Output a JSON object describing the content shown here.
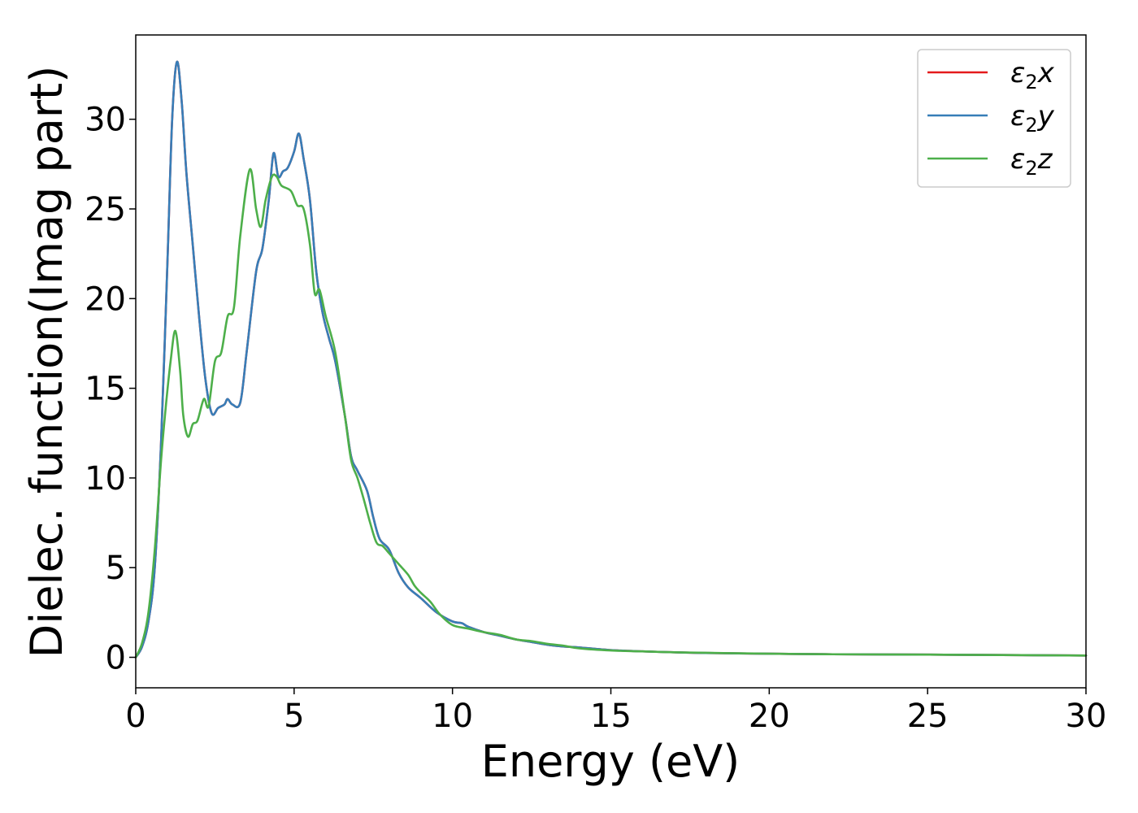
{
  "chart_data": {
    "type": "line",
    "title": "",
    "xlabel": "Energy (eV)",
    "ylabel": "Dielec. function(Imag part)",
    "xlim": [
      0,
      30
    ],
    "ylim": [
      -1.7,
      34.7
    ],
    "xticks": [
      0,
      5,
      10,
      15,
      20,
      25,
      30
    ],
    "yticks": [
      0,
      5,
      10,
      15,
      20,
      25,
      30
    ],
    "grid": false,
    "legend_position": "top-right",
    "series": [
      {
        "name": "ε₂x",
        "legend_base": "ε",
        "legend_sub": "2",
        "legend_suffix": "x",
        "color": "#e41a1c",
        "points": [
          [
            0,
            0
          ],
          [
            0.2,
            0.6
          ],
          [
            0.4,
            2
          ],
          [
            0.6,
            5
          ],
          [
            0.8,
            12
          ],
          [
            1,
            22
          ],
          [
            1.15,
            30
          ],
          [
            1.3,
            33.2
          ],
          [
            1.45,
            31
          ],
          [
            1.6,
            27
          ],
          [
            1.8,
            23
          ],
          [
            2,
            19
          ],
          [
            2.2,
            15.5
          ],
          [
            2.4,
            13.6
          ],
          [
            2.6,
            13.9
          ],
          [
            2.8,
            14.1
          ],
          [
            2.9,
            14.4
          ],
          [
            3.05,
            14.1
          ],
          [
            3.3,
            14.2
          ],
          [
            3.5,
            17
          ],
          [
            3.8,
            21.5
          ],
          [
            4,
            22.8
          ],
          [
            4.2,
            25.5
          ],
          [
            4.35,
            28.1
          ],
          [
            4.5,
            26.8
          ],
          [
            4.65,
            27.1
          ],
          [
            4.8,
            27.3
          ],
          [
            5,
            28.2
          ],
          [
            5.15,
            29.2
          ],
          [
            5.3,
            27.8
          ],
          [
            5.5,
            25.5
          ],
          [
            5.7,
            21.5
          ],
          [
            5.9,
            19.2
          ],
          [
            6.1,
            17.8
          ],
          [
            6.3,
            16.5
          ],
          [
            6.6,
            13.5
          ],
          [
            6.8,
            11.2
          ],
          [
            7,
            10.4
          ],
          [
            7.3,
            9.3
          ],
          [
            7.5,
            7.8
          ],
          [
            7.7,
            6.6
          ],
          [
            8,
            6
          ],
          [
            8.3,
            4.7
          ],
          [
            8.6,
            3.9
          ],
          [
            9,
            3.3
          ],
          [
            9.5,
            2.5
          ],
          [
            10,
            2
          ],
          [
            10.3,
            1.9
          ],
          [
            10.5,
            1.7
          ],
          [
            11,
            1.4
          ],
          [
            11.5,
            1.2
          ],
          [
            12,
            1
          ],
          [
            12.5,
            0.85
          ],
          [
            13,
            0.7
          ],
          [
            13.5,
            0.6
          ],
          [
            14,
            0.55
          ],
          [
            15,
            0.4
          ],
          [
            16,
            0.33
          ],
          [
            17,
            0.28
          ],
          [
            18,
            0.24
          ],
          [
            20,
            0.2
          ],
          [
            22,
            0.17
          ],
          [
            25,
            0.15
          ],
          [
            28,
            0.12
          ],
          [
            30,
            0.1
          ]
        ]
      },
      {
        "name": "ε₂y",
        "legend_base": "ε",
        "legend_sub": "2",
        "legend_suffix": "y",
        "color": "#377eb8",
        "points": [
          [
            0,
            0
          ],
          [
            0.2,
            0.6
          ],
          [
            0.4,
            2
          ],
          [
            0.6,
            5
          ],
          [
            0.8,
            12
          ],
          [
            1,
            22
          ],
          [
            1.15,
            30
          ],
          [
            1.3,
            33.2
          ],
          [
            1.45,
            31
          ],
          [
            1.6,
            27
          ],
          [
            1.8,
            23
          ],
          [
            2,
            19
          ],
          [
            2.2,
            15.5
          ],
          [
            2.4,
            13.6
          ],
          [
            2.6,
            13.9
          ],
          [
            2.8,
            14.1
          ],
          [
            2.9,
            14.4
          ],
          [
            3.05,
            14.1
          ],
          [
            3.3,
            14.2
          ],
          [
            3.5,
            17
          ],
          [
            3.8,
            21.5
          ],
          [
            4,
            22.8
          ],
          [
            4.2,
            25.5
          ],
          [
            4.35,
            28.1
          ],
          [
            4.5,
            26.8
          ],
          [
            4.65,
            27.1
          ],
          [
            4.8,
            27.3
          ],
          [
            5,
            28.2
          ],
          [
            5.15,
            29.2
          ],
          [
            5.3,
            27.8
          ],
          [
            5.5,
            25.5
          ],
          [
            5.7,
            21.5
          ],
          [
            5.9,
            19.2
          ],
          [
            6.1,
            17.8
          ],
          [
            6.3,
            16.5
          ],
          [
            6.6,
            13.5
          ],
          [
            6.8,
            11.2
          ],
          [
            7,
            10.4
          ],
          [
            7.3,
            9.3
          ],
          [
            7.5,
            7.8
          ],
          [
            7.7,
            6.6
          ],
          [
            8,
            6
          ],
          [
            8.3,
            4.7
          ],
          [
            8.6,
            3.9
          ],
          [
            9,
            3.3
          ],
          [
            9.5,
            2.5
          ],
          [
            10,
            2
          ],
          [
            10.3,
            1.9
          ],
          [
            10.5,
            1.7
          ],
          [
            11,
            1.4
          ],
          [
            11.5,
            1.2
          ],
          [
            12,
            1
          ],
          [
            12.5,
            0.85
          ],
          [
            13,
            0.7
          ],
          [
            13.5,
            0.6
          ],
          [
            14,
            0.55
          ],
          [
            15,
            0.4
          ],
          [
            16,
            0.33
          ],
          [
            17,
            0.28
          ],
          [
            18,
            0.24
          ],
          [
            20,
            0.2
          ],
          [
            22,
            0.17
          ],
          [
            25,
            0.15
          ],
          [
            28,
            0.12
          ],
          [
            30,
            0.1
          ]
        ]
      },
      {
        "name": "ε₂z",
        "legend_base": "ε",
        "legend_sub": "2",
        "legend_suffix": "z",
        "color": "#4daf4a",
        "points": [
          [
            0,
            0
          ],
          [
            0.2,
            0.8
          ],
          [
            0.4,
            2.5
          ],
          [
            0.6,
            6
          ],
          [
            0.8,
            11
          ],
          [
            0.95,
            14
          ],
          [
            1.1,
            16.5
          ],
          [
            1.25,
            18.2
          ],
          [
            1.4,
            16
          ],
          [
            1.5,
            13.5
          ],
          [
            1.65,
            12.3
          ],
          [
            1.8,
            13
          ],
          [
            1.95,
            13.2
          ],
          [
            2.15,
            14.4
          ],
          [
            2.3,
            14
          ],
          [
            2.5,
            16.5
          ],
          [
            2.7,
            17
          ],
          [
            2.9,
            19
          ],
          [
            3.1,
            19.5
          ],
          [
            3.3,
            23.5
          ],
          [
            3.6,
            27.2
          ],
          [
            3.8,
            25
          ],
          [
            3.95,
            24
          ],
          [
            4.1,
            25.5
          ],
          [
            4.3,
            26.8
          ],
          [
            4.45,
            26.8
          ],
          [
            4.6,
            26.3
          ],
          [
            4.9,
            26
          ],
          [
            5.1,
            25.2
          ],
          [
            5.3,
            25
          ],
          [
            5.5,
            23
          ],
          [
            5.65,
            20.3
          ],
          [
            5.8,
            20.5
          ],
          [
            6,
            19
          ],
          [
            6.3,
            17
          ],
          [
            6.6,
            13.5
          ],
          [
            6.8,
            11
          ],
          [
            7,
            10
          ],
          [
            7.2,
            8.8
          ],
          [
            7.4,
            7.5
          ],
          [
            7.6,
            6.4
          ],
          [
            7.8,
            6.2
          ],
          [
            8,
            5.8
          ],
          [
            8.3,
            5.2
          ],
          [
            8.6,
            4.6
          ],
          [
            8.8,
            4
          ],
          [
            9,
            3.6
          ],
          [
            9.3,
            3.1
          ],
          [
            9.6,
            2.4
          ],
          [
            10,
            1.8
          ],
          [
            10.5,
            1.6
          ],
          [
            11,
            1.4
          ],
          [
            11.5,
            1.25
          ],
          [
            12,
            1
          ],
          [
            12.5,
            0.9
          ],
          [
            13,
            0.75
          ],
          [
            13.5,
            0.65
          ],
          [
            14,
            0.5
          ],
          [
            15,
            0.38
          ],
          [
            16,
            0.33
          ],
          [
            17,
            0.28
          ],
          [
            18,
            0.25
          ],
          [
            20,
            0.2
          ],
          [
            22,
            0.17
          ],
          [
            25,
            0.15
          ],
          [
            28,
            0.12
          ],
          [
            30,
            0.1
          ]
        ]
      }
    ]
  }
}
